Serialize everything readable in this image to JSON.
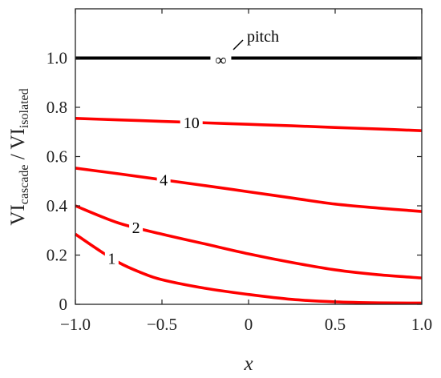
{
  "chart_data": {
    "type": "line",
    "title": "",
    "xlabel": "x",
    "ylabel": {
      "part1": "VI",
      "sub1": "cascade",
      "separator": " / VI",
      "sub2": "isolated"
    },
    "xlim": [
      -1.0,
      1.0
    ],
    "ylim": [
      0,
      1.2
    ],
    "x_ticks": [
      "−1.0",
      "−0.5",
      "0",
      "0.5",
      "1.0"
    ],
    "x_tick_values": [
      -1.0,
      -0.5,
      0,
      0.5,
      1.0
    ],
    "y_ticks": [
      "0",
      "0.2",
      "0.4",
      "0.6",
      "0.8",
      "1.0"
    ],
    "y_tick_values": [
      0,
      0.2,
      0.4,
      0.6,
      0.8,
      1.0
    ],
    "grid": false,
    "legend": "none",
    "annotation": {
      "text": "pitch",
      "target_series": "∞"
    },
    "series": [
      {
        "name": "∞",
        "color": "#000000",
        "label_x": -0.16,
        "x": [
          -1.0,
          -0.5,
          0.0,
          0.5,
          1.0
        ],
        "y": [
          1.0,
          1.0,
          1.0,
          1.0,
          1.0
        ]
      },
      {
        "name": "10",
        "color": "#ff0000",
        "label_x": -0.33,
        "x": [
          -1.0,
          -0.75,
          -0.5,
          -0.25,
          0.0,
          0.25,
          0.5,
          0.75,
          1.0
        ],
        "y": [
          0.755,
          0.749,
          0.743,
          0.737,
          0.731,
          0.725,
          0.718,
          0.712,
          0.705
        ]
      },
      {
        "name": "4",
        "color": "#ff0000",
        "label_x": -0.49,
        "x": [
          -1.0,
          -0.75,
          -0.5,
          -0.25,
          0.0,
          0.25,
          0.5,
          0.75,
          1.0
        ],
        "y": [
          0.553,
          0.53,
          0.506,
          0.482,
          0.457,
          0.432,
          0.407,
          0.391,
          0.377
        ]
      },
      {
        "name": "2",
        "color": "#ff0000",
        "label_x": -0.65,
        "x": [
          -1.0,
          -0.75,
          -0.5,
          -0.25,
          0.0,
          0.25,
          0.5,
          0.75,
          1.0
        ],
        "y": [
          0.4,
          0.33,
          0.285,
          0.245,
          0.205,
          0.17,
          0.14,
          0.12,
          0.107
        ]
      },
      {
        "name": "1",
        "color": "#ff0000",
        "label_x": -0.79,
        "x": [
          -1.0,
          -0.875,
          -0.75,
          -0.625,
          -0.5,
          -0.25,
          0.0,
          0.25,
          0.5,
          0.75,
          1.0
        ],
        "y": [
          0.285,
          0.225,
          0.17,
          0.13,
          0.1,
          0.065,
          0.04,
          0.02,
          0.01,
          0.006,
          0.005
        ]
      }
    ]
  }
}
